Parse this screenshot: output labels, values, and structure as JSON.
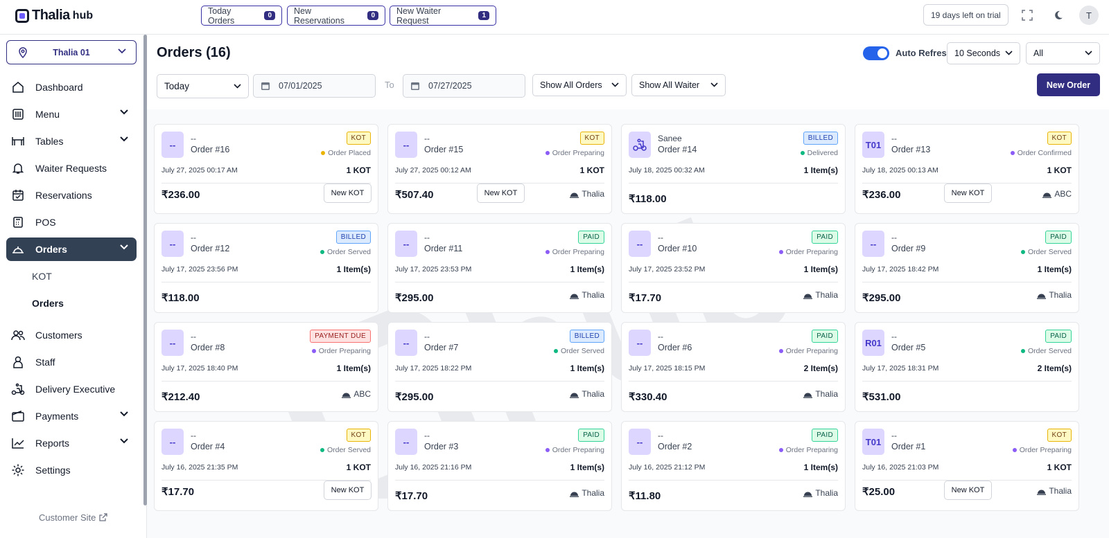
{
  "app": {
    "logo_main": "Thalia",
    "logo_sub": "hub"
  },
  "topbar": {
    "today_orders": {
      "label": "Today Orders",
      "count": "0"
    },
    "new_reservations": {
      "label": "New Reservations",
      "count": "0"
    },
    "new_waiter_request": {
      "label": "New Waiter Request",
      "count": "1"
    },
    "trial": "19 days left on trial",
    "avatar": "T"
  },
  "sidebar": {
    "branch": "Thalia 01",
    "items": [
      {
        "label": "Dashboard",
        "icon": "home-icon"
      },
      {
        "label": "Menu",
        "icon": "menu-icon"
      },
      {
        "label": "Tables",
        "icon": "table-icon"
      },
      {
        "label": "Waiter Requests",
        "icon": "bell-icon"
      },
      {
        "label": "Reservations",
        "icon": "calendar-check-icon"
      },
      {
        "label": "POS",
        "icon": "pos-icon"
      },
      {
        "label": "Orders",
        "icon": "cloche-icon"
      },
      {
        "label": "Customers",
        "icon": "users-icon"
      },
      {
        "label": "Staff",
        "icon": "staff-icon"
      },
      {
        "label": "Delivery Executive",
        "icon": "scooter-icon"
      },
      {
        "label": "Payments",
        "icon": "wallet-icon"
      },
      {
        "label": "Reports",
        "icon": "chart-icon"
      },
      {
        "label": "Settings",
        "icon": "gear-icon"
      }
    ],
    "sub_items": [
      "KOT",
      "Orders"
    ],
    "customer_site": "Customer Site"
  },
  "header": {
    "title": "Orders (16)",
    "auto_refresh_label": "Auto Refresh",
    "refresh_interval": "10 Seconds",
    "filter_all": "All",
    "period": "Today",
    "date_from": "07/01/2025",
    "to_label": "To",
    "date_to": "07/27/2025",
    "order_filter": "Show All Orders",
    "waiter_filter": "Show All Waiter",
    "new_order": "New Order"
  },
  "colors": {
    "primary": "#312e81",
    "active_nav": "#334155",
    "kot": "#fef9c3",
    "billed": "#dbeafe",
    "paid": "#dcfce7",
    "due": "#fee2e2"
  },
  "orders": [
    {
      "table": "--",
      "customer": "--",
      "number": "Order #16",
      "badge": "KOT",
      "status": "Order Placed",
      "dot": "#eab308",
      "date": "July 27, 2025 00:17 AM",
      "items": "1 KOT",
      "amount": "₹236.00",
      "action": "New KOT",
      "waiter": ""
    },
    {
      "table": "--",
      "customer": "--",
      "number": "Order #15",
      "badge": "KOT",
      "status": "Order Preparing",
      "dot": "#8b5cf6",
      "date": "July 27, 2025 00:12 AM",
      "items": "1 KOT",
      "amount": "₹507.40",
      "action": "New KOT",
      "waiter": "Thalia"
    },
    {
      "table": "",
      "customer": "Sanee",
      "number": "Order #14",
      "badge": "BILLED",
      "status": "Delivered",
      "dot": "#10b981",
      "date": "July 18, 2025 00:32 AM",
      "items": "1 Item(s)",
      "amount": "₹118.00",
      "action": "",
      "waiter": ""
    },
    {
      "table": "T01",
      "customer": "--",
      "number": "Order #13",
      "badge": "KOT",
      "status": "Order Confirmed",
      "dot": "#8b5cf6",
      "date": "July 18, 2025 00:13 AM",
      "items": "1 KOT",
      "amount": "₹236.00",
      "action": "New KOT",
      "waiter": "ABC"
    },
    {
      "table": "--",
      "customer": "--",
      "number": "Order #12",
      "badge": "BILLED",
      "status": "Order Served",
      "dot": "#10b981",
      "date": "July 17, 2025 23:56 PM",
      "items": "1 Item(s)",
      "amount": "₹118.00",
      "action": "",
      "waiter": ""
    },
    {
      "table": "--",
      "customer": "--",
      "number": "Order #11",
      "badge": "PAID",
      "status": "Order Preparing",
      "dot": "#8b5cf6",
      "date": "July 17, 2025 23:53 PM",
      "items": "1 Item(s)",
      "amount": "₹295.00",
      "action": "",
      "waiter": "Thalia"
    },
    {
      "table": "--",
      "customer": "--",
      "number": "Order #10",
      "badge": "PAID",
      "status": "Order Preparing",
      "dot": "#8b5cf6",
      "date": "July 17, 2025 23:52 PM",
      "items": "1 Item(s)",
      "amount": "₹17.70",
      "action": "",
      "waiter": "Thalia"
    },
    {
      "table": "--",
      "customer": "--",
      "number": "Order #9",
      "badge": "PAID",
      "status": "Order Served",
      "dot": "#10b981",
      "date": "July 17, 2025 18:42 PM",
      "items": "1 Item(s)",
      "amount": "₹295.00",
      "action": "",
      "waiter": "Thalia"
    },
    {
      "table": "--",
      "customer": "--",
      "number": "Order #8",
      "badge": "PAYMENT DUE",
      "status": "Order Preparing",
      "dot": "#8b5cf6",
      "date": "July 17, 2025 18:40 PM",
      "items": "1 Item(s)",
      "amount": "₹212.40",
      "action": "",
      "waiter": "ABC"
    },
    {
      "table": "--",
      "customer": "--",
      "number": "Order #7",
      "badge": "BILLED",
      "status": "Order Served",
      "dot": "#10b981",
      "date": "July 17, 2025 18:22 PM",
      "items": "1 Item(s)",
      "amount": "₹295.00",
      "action": "",
      "waiter": "Thalia"
    },
    {
      "table": "--",
      "customer": "--",
      "number": "Order #6",
      "badge": "PAID",
      "status": "Order Preparing",
      "dot": "#8b5cf6",
      "date": "July 17, 2025 18:15 PM",
      "items": "2 Item(s)",
      "amount": "₹330.40",
      "action": "",
      "waiter": "Thalia"
    },
    {
      "table": "R01",
      "customer": "--",
      "number": "Order #5",
      "badge": "PAID",
      "status": "Order Served",
      "dot": "#10b981",
      "date": "July 17, 2025 18:31 PM",
      "items": "2 Item(s)",
      "amount": "₹531.00",
      "action": "",
      "waiter": ""
    },
    {
      "table": "--",
      "customer": "--",
      "number": "Order #4",
      "badge": "KOT",
      "status": "Order Served",
      "dot": "#10b981",
      "date": "July 16, 2025 21:35 PM",
      "items": "1 KOT",
      "amount": "₹17.70",
      "action": "New KOT",
      "waiter": ""
    },
    {
      "table": "--",
      "customer": "--",
      "number": "Order #3",
      "badge": "PAID",
      "status": "Order Preparing",
      "dot": "#8b5cf6",
      "date": "July 16, 2025 21:16 PM",
      "items": "1 Item(s)",
      "amount": "₹17.70",
      "action": "",
      "waiter": "Thalia"
    },
    {
      "table": "--",
      "customer": "--",
      "number": "Order #2",
      "badge": "PAID",
      "status": "Order Preparing",
      "dot": "#8b5cf6",
      "date": "July 16, 2025 21:12 PM",
      "items": "1 Item(s)",
      "amount": "₹11.80",
      "action": "",
      "waiter": "Thalia"
    },
    {
      "table": "T01",
      "customer": "--",
      "number": "Order #1",
      "badge": "KOT",
      "status": "Order Preparing",
      "dot": "#8b5cf6",
      "date": "July 16, 2025 21:03 PM",
      "items": "1 KOT",
      "amount": "₹25.00",
      "action": "New KOT",
      "waiter": "Thalia"
    }
  ]
}
